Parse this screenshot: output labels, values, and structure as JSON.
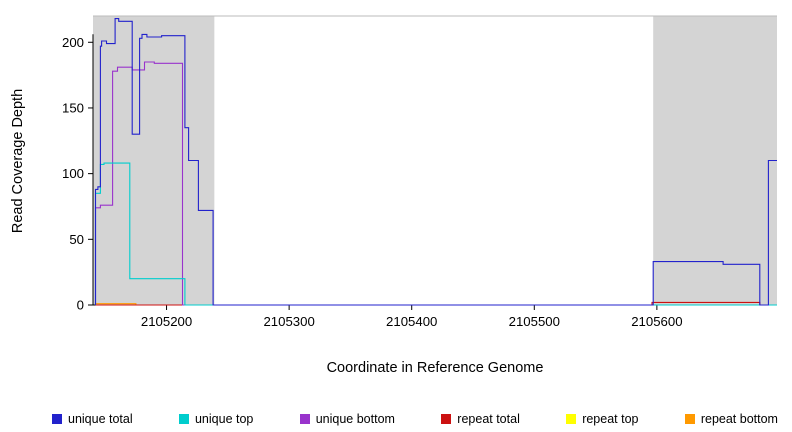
{
  "chart_data": {
    "type": "line",
    "title": "",
    "xlabel": "Coordinate in Reference Genome",
    "ylabel": "Read Coverage Depth",
    "xlim": [
      2105140,
      2105698
    ],
    "ylim": [
      0,
      220
    ],
    "x_ticks": [
      2105200,
      2105300,
      2105400,
      2105500,
      2105600
    ],
    "y_ticks": [
      0,
      50,
      100,
      150,
      200
    ],
    "grid": false,
    "legend_position": "bottom",
    "plot_background": "#ffffff",
    "shaded_region_color": "#d4d4d4",
    "frame_line_color": "#bbbbbb",
    "shaded_regions": [
      {
        "x0": 2105140,
        "x1": 2105239
      },
      {
        "x0": 2105597,
        "x1": 2105698
      }
    ],
    "series": [
      {
        "name": "unique total",
        "color": "#2222cc",
        "points": [
          [
            2105142,
            0
          ],
          [
            2105142,
            88
          ],
          [
            2105144,
            88
          ],
          [
            2105144,
            90
          ],
          [
            2105146,
            90
          ],
          [
            2105146,
            197
          ],
          [
            2105147,
            197
          ],
          [
            2105147,
            201
          ],
          [
            2105151,
            201
          ],
          [
            2105151,
            199
          ],
          [
            2105158,
            199
          ],
          [
            2105158,
            218
          ],
          [
            2105161,
            218
          ],
          [
            2105161,
            216
          ],
          [
            2105172,
            216
          ],
          [
            2105172,
            130
          ],
          [
            2105178,
            130
          ],
          [
            2105178,
            203
          ],
          [
            2105180,
            203
          ],
          [
            2105180,
            206
          ],
          [
            2105184,
            206
          ],
          [
            2105184,
            204
          ],
          [
            2105196,
            204
          ],
          [
            2105196,
            205
          ],
          [
            2105215,
            205
          ],
          [
            2105215,
            135
          ],
          [
            2105218,
            135
          ],
          [
            2105218,
            110
          ],
          [
            2105226,
            110
          ],
          [
            2105226,
            72
          ],
          [
            2105238,
            72
          ],
          [
            2105238,
            0
          ],
          [
            2105597,
            0
          ],
          [
            2105597,
            33
          ],
          [
            2105654,
            33
          ],
          [
            2105654,
            31
          ],
          [
            2105684,
            31
          ],
          [
            2105684,
            0
          ],
          [
            2105691,
            0
          ],
          [
            2105691,
            110
          ],
          [
            2105698,
            110
          ]
        ]
      },
      {
        "name": "unique top",
        "color": "#00cdcd",
        "points": [
          [
            2105142,
            0
          ],
          [
            2105142,
            85
          ],
          [
            2105146,
            85
          ],
          [
            2105146,
            107
          ],
          [
            2105149,
            107
          ],
          [
            2105149,
            108
          ],
          [
            2105170,
            108
          ],
          [
            2105170,
            20
          ],
          [
            2105215,
            20
          ],
          [
            2105215,
            0
          ],
          [
            2105698,
            0
          ]
        ]
      },
      {
        "name": "unique bottom",
        "color": "#9933cc",
        "points": [
          [
            2105142,
            0
          ],
          [
            2105142,
            74
          ],
          [
            2105146,
            74
          ],
          [
            2105146,
            76
          ],
          [
            2105156,
            76
          ],
          [
            2105156,
            178
          ],
          [
            2105160,
            178
          ],
          [
            2105160,
            181
          ],
          [
            2105172,
            181
          ],
          [
            2105172,
            179
          ],
          [
            2105182,
            179
          ],
          [
            2105182,
            185
          ],
          [
            2105190,
            185
          ],
          [
            2105190,
            184
          ],
          [
            2105213,
            184
          ],
          [
            2105213,
            0
          ],
          [
            2105698,
            0
          ]
        ]
      },
      {
        "name": "repeat total",
        "color": "#cc1111",
        "points": [
          [
            2105142,
            0
          ],
          [
            2105596,
            0
          ],
          [
            2105596,
            2
          ],
          [
            2105684,
            2
          ],
          [
            2105684,
            0
          ],
          [
            2105698,
            0
          ]
        ]
      },
      {
        "name": "repeat top",
        "color": "#ffff00",
        "points": [
          [
            2105142,
            0
          ],
          [
            2105698,
            0
          ]
        ]
      },
      {
        "name": "repeat bottom",
        "color": "#ff9900",
        "points": [
          [
            2105142,
            1
          ],
          [
            2105175,
            1
          ],
          [
            2105175,
            0
          ],
          [
            2105698,
            0
          ]
        ]
      }
    ]
  }
}
